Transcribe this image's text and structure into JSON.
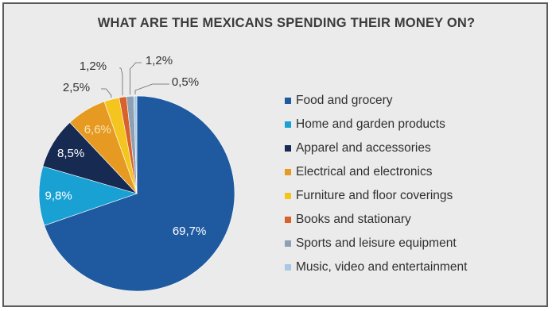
{
  "chart_data": {
    "type": "pie",
    "title": "WHAT ARE THE MEXICANS SPENDING THEIR MONEY ON?",
    "categories": [
      "Food and grocery",
      "Home and garden products",
      "Apparel and accessories",
      "Electrical and electronics",
      "Furniture and floor coverings",
      "Books and stationary",
      "Sports and leisure equipment",
      "Music, video and entertainment"
    ],
    "values": [
      69.7,
      9.8,
      8.5,
      6.6,
      2.5,
      1.2,
      1.2,
      0.5
    ],
    "value_labels": [
      "69,7%",
      "9,8%",
      "8,5%",
      "6,6%",
      "2,5%",
      "1,2%",
      "1,2%",
      "0,5%"
    ],
    "colors": [
      "#1f5aa0",
      "#19a1d4",
      "#162a52",
      "#e69a22",
      "#f4c51f",
      "#d9612a",
      "#8ea0b3",
      "#a9c8e6"
    ],
    "start_angle_deg": 0,
    "direction": "clockwise",
    "legend_position": "right"
  }
}
